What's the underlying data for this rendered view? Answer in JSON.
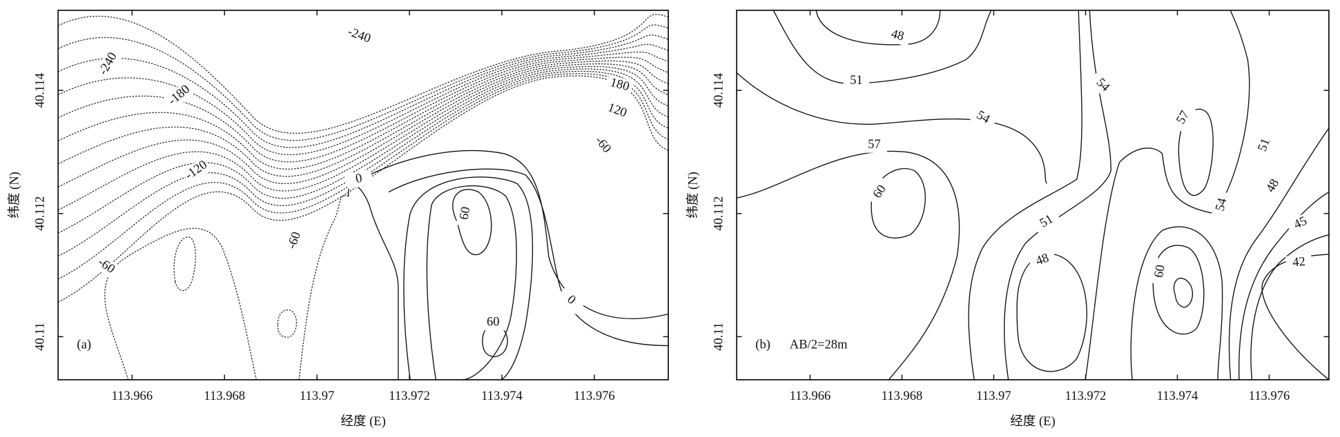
{
  "chart_data": [
    {
      "type": "contour",
      "panel_label": "(a)",
      "xlabel": "经度 (E)",
      "ylabel": "纬度 (N)",
      "xlim": [
        113.9644,
        113.9776
      ],
      "ylim": [
        40.1093,
        40.1153
      ],
      "xticks": [
        113.966,
        113.968,
        113.97,
        113.972,
        113.974,
        113.976
      ],
      "yticks": [
        40.11,
        40.112,
        40.114
      ],
      "contour_labels": [
        -240,
        -240,
        -180,
        180,
        120,
        -120,
        -60,
        -60,
        -60,
        0,
        0,
        60,
        60
      ]
    },
    {
      "type": "contour",
      "panel_label": "(b)",
      "annotation": "AB/2=28m",
      "xlabel": "经度 (E)",
      "ylabel": "纬度 (N)",
      "xlim": [
        113.9644,
        113.9773
      ],
      "ylim": [
        40.1093,
        40.1153
      ],
      "xticks": [
        113.966,
        113.968,
        113.97,
        113.972,
        113.974,
        113.976
      ],
      "yticks": [
        40.11,
        40.112,
        40.114
      ],
      "contour_labels": [
        48,
        51,
        54,
        54,
        57,
        57,
        60,
        51,
        48,
        60,
        54,
        51,
        48,
        45,
        42
      ]
    }
  ]
}
